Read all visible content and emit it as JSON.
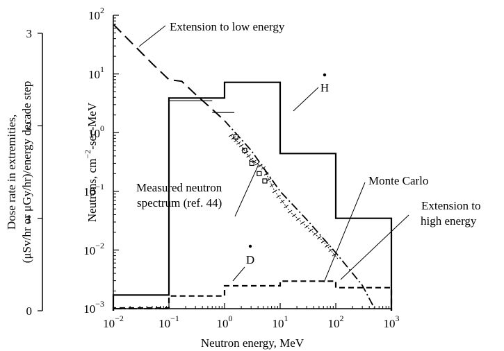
{
  "chart_data": {
    "type": "line",
    "x_axis": {
      "label": "Neutron energy, MeV",
      "scale": "log",
      "range": [
        0.01,
        1000
      ],
      "ticks": [
        {
          "base": "10",
          "exp": "−2",
          "value": 0.01
        },
        {
          "base": "10",
          "exp": "−1",
          "value": 0.1
        },
        {
          "base": "10",
          "exp": "0",
          "value": 1
        },
        {
          "base": "10",
          "exp": "1",
          "value": 10
        },
        {
          "base": "10",
          "exp": "2",
          "value": 100
        },
        {
          "base": "10",
          "exp": "3",
          "value": 1000
        }
      ]
    },
    "y_axis_right": {
      "label_prefix": "Neutrons, cm",
      "label_exp": "−2",
      "label_suffix": "-sec-MeV",
      "scale": "log",
      "range": [
        0.001,
        100
      ],
      "ticks": [
        {
          "base": "10",
          "exp": "2",
          "value": 100
        },
        {
          "base": "10",
          "exp": "1",
          "value": 10
        },
        {
          "base": "10",
          "exp": "0",
          "value": 1
        },
        {
          "base": "10",
          "exp": "−1",
          "value": 0.1
        },
        {
          "base": "10",
          "exp": "−2",
          "value": 0.01
        },
        {
          "base": "10",
          "exp": "−3",
          "value": 0.001
        }
      ]
    },
    "y_axis_left": {
      "label_line1": "Dose rate in extremities,",
      "label_line2": "(μSv/hr or μGy/hr)/energy decade step",
      "scale": "linear",
      "range": [
        0,
        3
      ],
      "ticks": [
        {
          "label": "3",
          "value": 3
        },
        {
          "label": "2",
          "value": 2
        },
        {
          "label": "1",
          "value": 1
        },
        {
          "label": "0",
          "value": 0
        }
      ]
    },
    "annotations": {
      "low_energy": "Extension to low energy",
      "h_dot": "H",
      "d_dot": "D",
      "monte_carlo": "Monte Carlo",
      "high_energy_line1": "Extension to",
      "high_energy_line2": "high energy",
      "measured_line1": "Measured neutron",
      "measured_line2": "spectrum (ref. 44)"
    },
    "series": [
      {
        "id": "h_dot",
        "style": "solid",
        "axis": "left",
        "kind": "step",
        "bins": [
          {
            "x0": 0.01,
            "x1": 0.1,
            "y": 0.17
          },
          {
            "x0": 0.1,
            "x1": 1,
            "y": 2.3
          },
          {
            "x0": 1,
            "x1": 10,
            "y": 2.47
          },
          {
            "x0": 10,
            "x1": 100,
            "y": 1.7
          },
          {
            "x0": 100,
            "x1": 1000,
            "y": 1.0
          }
        ]
      },
      {
        "id": "d_dot",
        "style": "dashed",
        "axis": "left",
        "kind": "step",
        "bins": [
          {
            "x0": 0.01,
            "x1": 0.1,
            "y": 0.03
          },
          {
            "x0": 0.1,
            "x1": 1,
            "y": 0.16
          },
          {
            "x0": 1,
            "x1": 10,
            "y": 0.27
          },
          {
            "x0": 10,
            "x1": 100,
            "y": 0.32
          },
          {
            "x0": 100,
            "x1": 1000,
            "y": 0.25
          }
        ]
      },
      {
        "id": "extension_low",
        "style": "long-dash",
        "axis": "right",
        "kind": "line",
        "points": [
          {
            "x": 0.01,
            "y": 70
          },
          {
            "x": 0.05,
            "y": 15
          },
          {
            "x": 0.1,
            "y": 8
          },
          {
            "x": 0.17,
            "y": 7.5
          },
          {
            "x": 0.3,
            "y": 4.5
          },
          {
            "x": 0.6,
            "y": 2.5
          },
          {
            "x": 1,
            "y": 1.6
          }
        ]
      },
      {
        "id": "spectrum_fit",
        "style": "dash-dot",
        "axis": "right",
        "kind": "line",
        "points": [
          {
            "x": 1,
            "y": 1.6
          },
          {
            "x": 3,
            "y": 0.5
          },
          {
            "x": 10,
            "y": 0.1
          },
          {
            "x": 30,
            "y": 0.033
          },
          {
            "x": 100,
            "y": 0.009
          },
          {
            "x": 300,
            "y": 0.0025
          },
          {
            "x": 500,
            "y": 0.001
          }
        ]
      },
      {
        "id": "low_floor",
        "style": "dash-dot",
        "axis": "right",
        "kind": "line",
        "points": [
          {
            "x": 0.01,
            "y": 0.001
          },
          {
            "x": 0.1,
            "y": 0.001
          }
        ]
      },
      {
        "id": "measured_spectrum",
        "style": "markers",
        "marker": "square",
        "axis": "right",
        "kind": "scatter",
        "points": [
          {
            "x": 1.6,
            "y": 0.85
          },
          {
            "x": 2.3,
            "y": 0.5
          },
          {
            "x": 3.1,
            "y": 0.3
          },
          {
            "x": 4.2,
            "y": 0.2
          },
          {
            "x": 5.3,
            "y": 0.15
          }
        ]
      },
      {
        "id": "monte_carlo",
        "style": "hatched",
        "axis": "right",
        "kind": "line",
        "points": [
          {
            "x": 1.3,
            "y": 0.9
          },
          {
            "x": 2,
            "y": 0.6
          },
          {
            "x": 3,
            "y": 0.35
          },
          {
            "x": 5,
            "y": 0.25
          },
          {
            "x": 8,
            "y": 0.1
          },
          {
            "x": 15,
            "y": 0.045
          },
          {
            "x": 30,
            "y": 0.025
          },
          {
            "x": 60,
            "y": 0.014
          },
          {
            "x": 110,
            "y": 0.007
          }
        ]
      },
      {
        "id": "measured_levels",
        "style": "solid-thin",
        "axis": "right",
        "kind": "segments",
        "segments": [
          {
            "x0": 0.1,
            "x1": 0.6,
            "y": 3.5
          },
          {
            "x0": 0.6,
            "x1": 1.5,
            "y": 2.2
          }
        ]
      }
    ]
  }
}
